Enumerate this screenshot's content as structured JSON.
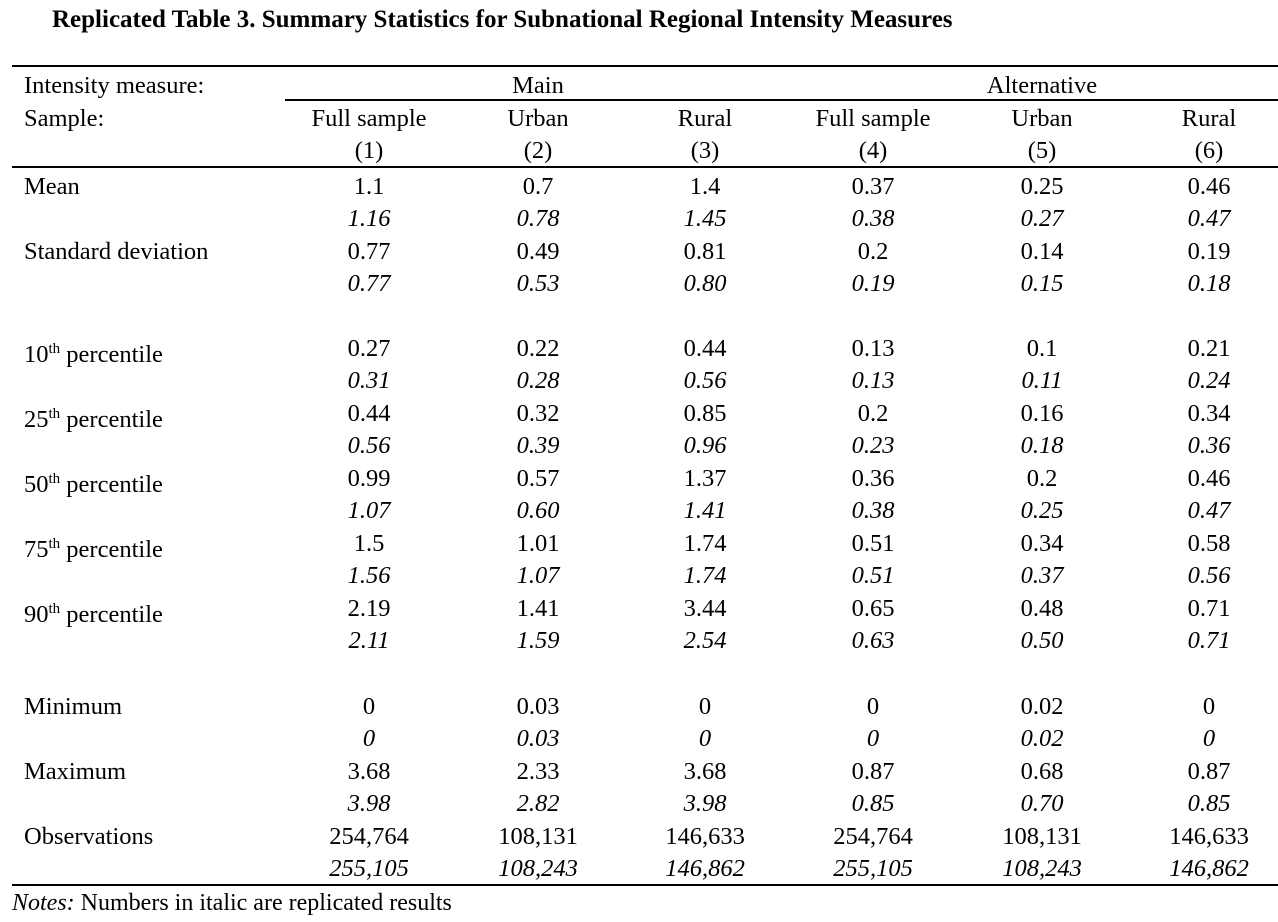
{
  "title": "Replicated Table 3. Summary Statistics for Subnational Regional Intensity Measures",
  "header": {
    "row1_label": "Intensity measure:",
    "row2_label": "Sample:",
    "groups": [
      "Main",
      "Alternative"
    ],
    "columns": [
      {
        "name": "Full sample",
        "num": "(1)"
      },
      {
        "name": "Urban",
        "num": "(2)"
      },
      {
        "name": "Rural",
        "num": "(3)"
      },
      {
        "name": "Full sample",
        "num": "(4)"
      },
      {
        "name": "Urban",
        "num": "(5)"
      },
      {
        "name": "Rural",
        "num": "(6)"
      }
    ]
  },
  "rows": [
    {
      "label": "Mean",
      "sup": "",
      "label_rest": "",
      "values": [
        "1.1",
        "0.7",
        "1.4",
        "0.37",
        "0.25",
        "0.46"
      ],
      "replicated": [
        "1.16",
        "0.78",
        "1.45",
        "0.38",
        "0.27",
        "0.47"
      ]
    },
    {
      "label": "Standard deviation",
      "sup": "",
      "label_rest": "",
      "values": [
        "0.77",
        "0.49",
        "0.81",
        "0.2",
        "0.14",
        "0.19"
      ],
      "replicated": [
        "0.77",
        "0.53",
        "0.80",
        "0.19",
        "0.15",
        "0.18"
      ]
    },
    {
      "label": "10",
      "sup": "th",
      "label_rest": " percentile",
      "values": [
        "0.27",
        "0.22",
        "0.44",
        "0.13",
        "0.1",
        "0.21"
      ],
      "replicated": [
        "0.31",
        "0.28",
        "0.56",
        "0.13",
        "0.11",
        "0.24"
      ]
    },
    {
      "label": "25",
      "sup": "th",
      "label_rest": " percentile",
      "values": [
        "0.44",
        "0.32",
        "0.85",
        "0.2",
        "0.16",
        "0.34"
      ],
      "replicated": [
        "0.56",
        "0.39",
        "0.96",
        "0.23",
        "0.18",
        "0.36"
      ]
    },
    {
      "label": "50",
      "sup": "th",
      "label_rest": " percentile",
      "values": [
        "0.99",
        "0.57",
        "1.37",
        "0.36",
        "0.2",
        "0.46"
      ],
      "replicated": [
        "1.07",
        "0.60",
        "1.41",
        "0.38",
        "0.25",
        "0.47"
      ]
    },
    {
      "label": "75",
      "sup": "th",
      "label_rest": " percentile",
      "values": [
        "1.5",
        "1.01",
        "1.74",
        "0.51",
        "0.34",
        "0.58"
      ],
      "replicated": [
        "1.56",
        "1.07",
        "1.74",
        "0.51",
        "0.37",
        "0.56"
      ]
    },
    {
      "label": "90",
      "sup": "th",
      "label_rest": " percentile",
      "values": [
        "2.19",
        "1.41",
        "3.44",
        "0.65",
        "0.48",
        "0.71"
      ],
      "replicated": [
        "2.11",
        "1.59",
        "2.54",
        "0.63",
        "0.50",
        "0.71"
      ]
    },
    {
      "label": "Minimum",
      "sup": "",
      "label_rest": "",
      "values": [
        "0",
        "0.03",
        "0",
        "0",
        "0.02",
        "0"
      ],
      "replicated": [
        "0",
        "0.03",
        "0",
        "0",
        "0.02",
        "0"
      ]
    },
    {
      "label": "Maximum",
      "sup": "",
      "label_rest": "",
      "values": [
        "3.68",
        "2.33",
        "3.68",
        "0.87",
        "0.68",
        "0.87"
      ],
      "replicated": [
        "3.98",
        "2.82",
        "3.98",
        "0.85",
        "0.70",
        "0.85"
      ]
    },
    {
      "label": "Observations",
      "sup": "",
      "label_rest": "",
      "values": [
        "254,764",
        "108,131",
        "146,633",
        "254,764",
        "108,131",
        "146,633"
      ],
      "replicated": [
        "255,105",
        "108,243",
        "146,862",
        "255,105",
        "108,243",
        "146,862"
      ]
    }
  ],
  "notes": {
    "prefix": "Notes:",
    "text": " Numbers in italic are replicated results"
  }
}
